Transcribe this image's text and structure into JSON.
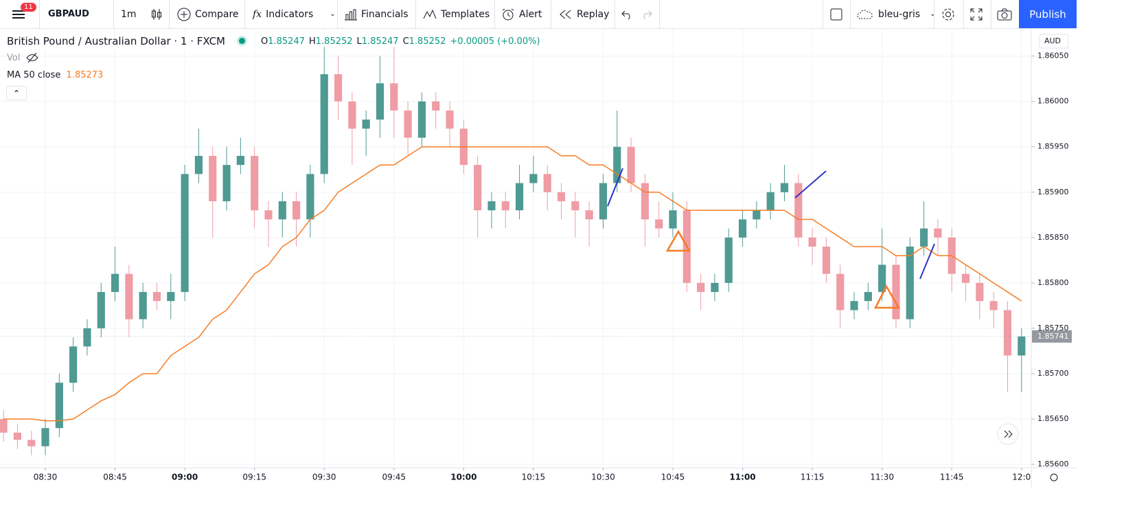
{
  "toolbar": {
    "badge": "11",
    "symbol": "GBPAUD",
    "interval": "1m",
    "compare": "Compare",
    "indicators": "Indicators",
    "financials": "Financials",
    "templates": "Templates",
    "alert": "Alert",
    "replay": "Replay",
    "layout": "bleu-gris",
    "publish": "Publish"
  },
  "legend": {
    "title": "British Pound / Australian Dollar · 1 · FXCM",
    "ohlc_labels": [
      "O",
      "H",
      "L",
      "C"
    ],
    "ohlc_values": [
      "1.85247",
      "1.85252",
      "1.85247",
      "1.85252"
    ],
    "change": "+0.00005 (+0.00%)",
    "vol": "Vol",
    "ma_name": "MA 50 close",
    "ma_value": "1.85273"
  },
  "currency": "AUD",
  "chart_data": {
    "type": "candlestick",
    "up_color": "#4f9a93",
    "down_color": "#ef9ca5",
    "ma_color": "#f57c24",
    "grid": true,
    "xlim": [
      -0.25,
      73.7
    ],
    "ylim": [
      1.85597,
      1.8608
    ],
    "xticks": [
      {
        "value": 3,
        "label": "08:30"
      },
      {
        "value": 8,
        "label": "08:45"
      },
      {
        "value": 13,
        "label": "09:00"
      },
      {
        "value": 18,
        "label": "09:15"
      },
      {
        "value": 23,
        "label": "09:30"
      },
      {
        "value": 28,
        "label": "09:45"
      },
      {
        "value": 33,
        "label": "10:00"
      },
      {
        "value": 38,
        "label": "10:15"
      },
      {
        "value": 43,
        "label": "10:30"
      },
      {
        "value": 48,
        "label": "10:45"
      },
      {
        "value": 53,
        "label": "11:00"
      },
      {
        "value": 58,
        "label": "11:15"
      },
      {
        "value": 63,
        "label": "11:30"
      },
      {
        "value": 68,
        "label": "11:45"
      },
      {
        "value": 73,
        "label": "12:0"
      }
    ],
    "yticks": [
      {
        "value": 1.856,
        "label": "1.85600"
      },
      {
        "value": 1.8565,
        "label": "1.85650"
      },
      {
        "value": 1.857,
        "label": "1.85700"
      },
      {
        "value": 1.8575,
        "label": "1.85750"
      },
      {
        "value": 1.858,
        "label": "1.85800"
      },
      {
        "value": 1.8585,
        "label": "1.85850"
      },
      {
        "value": 1.859,
        "label": "1.85900"
      },
      {
        "value": 1.8595,
        "label": "1.85950"
      },
      {
        "value": 1.86,
        "label": "1.86000"
      },
      {
        "value": 1.8605,
        "label": "1.86050"
      }
    ],
    "open": [
      1.8565,
      1.85635,
      1.85627,
      1.8562,
      1.8564,
      1.8569,
      1.8573,
      1.8575,
      1.8579,
      1.8581,
      1.8576,
      1.8579,
      1.8578,
      1.8579,
      1.8592,
      1.8594,
      1.8589,
      1.8593,
      1.8594,
      1.8588,
      1.8587,
      1.8589,
      1.8587,
      1.8592,
      1.8603,
      1.86,
      1.8597,
      1.8598,
      1.8602,
      1.8599,
      1.8596,
      1.86,
      1.8599,
      1.8597,
      1.8593,
      1.8588,
      1.8589,
      1.8588,
      1.8591,
      1.8592,
      1.859,
      1.8589,
      1.8588,
      1.8587,
      1.8591,
      1.8595,
      1.8591,
      1.8587,
      1.8586,
      1.8588,
      1.858,
      1.8579,
      1.858,
      1.8585,
      1.8587,
      1.8588,
      1.859,
      1.8591,
      1.8585,
      1.8584,
      1.8581,
      1.8577,
      1.8578,
      1.8579,
      1.8582,
      1.8576,
      1.8584,
      1.8586,
      1.8585,
      1.8581,
      1.858,
      1.8578,
      1.8577,
      1.8572
    ],
    "high": [
      1.8566,
      1.85645,
      1.85637,
      1.8565,
      1.857,
      1.8574,
      1.8576,
      1.858,
      1.8584,
      1.8582,
      1.858,
      1.858,
      1.8581,
      1.8593,
      1.8597,
      1.8595,
      1.8595,
      1.8596,
      1.8595,
      1.8589,
      1.859,
      1.859,
      1.8593,
      1.8606,
      1.8605,
      1.8601,
      1.8599,
      1.8605,
      1.8606,
      1.86,
      1.8601,
      1.8601,
      1.86,
      1.8598,
      1.8594,
      1.859,
      1.859,
      1.8593,
      1.8594,
      1.8593,
      1.8591,
      1.859,
      1.8589,
      1.8592,
      1.8599,
      1.8596,
      1.8592,
      1.8589,
      1.859,
      1.8589,
      1.8581,
      1.8581,
      1.8586,
      1.8588,
      1.8589,
      1.8591,
      1.8593,
      1.8592,
      1.8586,
      1.8585,
      1.8582,
      1.8579,
      1.858,
      1.8586,
      1.8583,
      1.8585,
      1.8589,
      1.8587,
      1.8586,
      1.8582,
      1.8581,
      1.8579,
      1.8578,
      1.8575
    ],
    "low": [
      1.85625,
      1.85617,
      1.8561,
      1.8561,
      1.8563,
      1.8568,
      1.8572,
      1.8574,
      1.8578,
      1.8574,
      1.8575,
      1.8577,
      1.8576,
      1.8578,
      1.8591,
      1.8585,
      1.8588,
      1.8592,
      1.8586,
      1.8584,
      1.8585,
      1.8584,
      1.8585,
      1.8591,
      1.8598,
      1.8593,
      1.8594,
      1.8596,
      1.8596,
      1.8594,
      1.8595,
      1.8597,
      1.8595,
      1.8592,
      1.8585,
      1.8586,
      1.8586,
      1.8587,
      1.859,
      1.8588,
      1.8587,
      1.8585,
      1.8584,
      1.8586,
      1.859,
      1.859,
      1.8584,
      1.8585,
      1.8585,
      1.8579,
      1.8577,
      1.8578,
      1.8579,
      1.8584,
      1.8586,
      1.8587,
      1.8589,
      1.8584,
      1.8582,
      1.858,
      1.8575,
      1.8576,
      1.8577,
      1.8578,
      1.8575,
      1.8575,
      1.8583,
      1.8583,
      1.8579,
      1.8578,
      1.8576,
      1.8575,
      1.8568,
      1.8568
    ],
    "close": [
      1.85635,
      1.85627,
      1.8562,
      1.8564,
      1.8569,
      1.8573,
      1.8575,
      1.8579,
      1.8581,
      1.8576,
      1.8579,
      1.8578,
      1.8579,
      1.8592,
      1.8594,
      1.8589,
      1.8593,
      1.8594,
      1.8588,
      1.8587,
      1.8589,
      1.8587,
      1.8592,
      1.8603,
      1.86,
      1.8597,
      1.8598,
      1.8602,
      1.8599,
      1.8596,
      1.86,
      1.8599,
      1.8597,
      1.8593,
      1.8588,
      1.8589,
      1.8588,
      1.8591,
      1.8592,
      1.859,
      1.8589,
      1.8588,
      1.8587,
      1.8591,
      1.8595,
      1.8591,
      1.8587,
      1.8586,
      1.8588,
      1.858,
      1.8579,
      1.858,
      1.8585,
      1.8587,
      1.8588,
      1.859,
      1.8591,
      1.8585,
      1.8584,
      1.8581,
      1.8577,
      1.8578,
      1.8579,
      1.8582,
      1.8576,
      1.8584,
      1.8586,
      1.8585,
      1.8581,
      1.858,
      1.8578,
      1.8577,
      1.8572,
      1.85741
    ],
    "ma": [
      1.8565,
      1.8565,
      1.8565,
      1.85648,
      1.85648,
      1.8565,
      1.8566,
      1.8567,
      1.85677,
      1.8569,
      1.857,
      1.857,
      1.8572,
      1.8573,
      1.8574,
      1.8576,
      1.8577,
      1.8579,
      1.8581,
      1.8582,
      1.8584,
      1.8585,
      1.8587,
      1.8588,
      1.859,
      1.8591,
      1.8592,
      1.8593,
      1.8593,
      1.8594,
      1.8595,
      1.8595,
      1.8595,
      1.8595,
      1.8595,
      1.8595,
      1.8595,
      1.8595,
      1.8595,
      1.8595,
      1.8594,
      1.8594,
      1.8593,
      1.8593,
      1.8592,
      1.8591,
      1.859,
      1.859,
      1.8589,
      1.8588,
      1.8588,
      1.8588,
      1.8588,
      1.8588,
      1.8588,
      1.8588,
      1.8588,
      1.8587,
      1.8587,
      1.8586,
      1.8585,
      1.8584,
      1.8584,
      1.8584,
      1.8583,
      1.8583,
      1.8584,
      1.8583,
      1.8583,
      1.8582,
      1.8581,
      1.858,
      1.8579,
      1.8578
    ],
    "last_value_label": "1.85741"
  }
}
